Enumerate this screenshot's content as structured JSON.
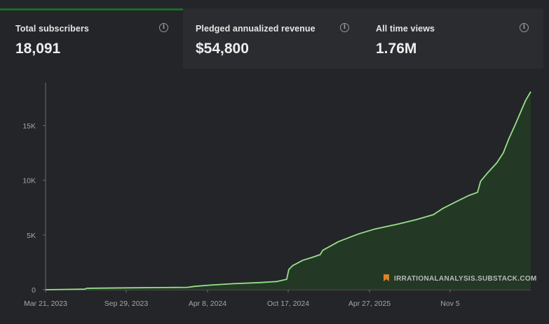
{
  "metrics": [
    {
      "label": "Total subscribers",
      "value": "18,091"
    },
    {
      "label": "Pledged annualized revenue",
      "value": "$54,800"
    },
    {
      "label": "All time views",
      "value": "1.76M"
    }
  ],
  "info_icon": "info-circle-icon",
  "watermark": {
    "icon": "bookmark-icon",
    "text": "IRRATIONALANALYSIS.SUBSTACK.COM"
  },
  "colors": {
    "background": "#232528",
    "line": "#98e08a",
    "area": "#243a25",
    "accent": "#1c6b28",
    "watermark_icon": "#d9822b"
  },
  "chart_data": {
    "type": "area",
    "title": "",
    "xlabel": "",
    "ylabel": "",
    "x_ticks": [
      "Mar 21, 2023",
      "Sep 29, 2023",
      "Apr 8, 2024",
      "Oct 17, 2024",
      "Apr 27, 2025",
      "Nov 5"
    ],
    "y_ticks": [
      "0",
      "5K",
      "10K",
      "15K"
    ],
    "ylim": [
      0,
      18091
    ],
    "grid": false,
    "series": [
      {
        "points": [
          {
            "x": "2023-03-21",
            "y": 0
          },
          {
            "x": "2023-06-21",
            "y": 50
          },
          {
            "x": "2023-06-24",
            "y": 130
          },
          {
            "x": "2023-09-29",
            "y": 170
          },
          {
            "x": "2023-12-20",
            "y": 200
          },
          {
            "x": "2024-02-15",
            "y": 220
          },
          {
            "x": "2024-03-01",
            "y": 300
          },
          {
            "x": "2024-04-08",
            "y": 420
          },
          {
            "x": "2024-06-01",
            "y": 550
          },
          {
            "x": "2024-08-01",
            "y": 650
          },
          {
            "x": "2024-09-10",
            "y": 750
          },
          {
            "x": "2024-10-03",
            "y": 950
          },
          {
            "x": "2024-10-08",
            "y": 1850
          },
          {
            "x": "2024-10-17",
            "y": 2200
          },
          {
            "x": "2024-11-10",
            "y": 2700
          },
          {
            "x": "2024-12-01",
            "y": 2950
          },
          {
            "x": "2024-12-20",
            "y": 3200
          },
          {
            "x": "2024-12-26",
            "y": 3600
          },
          {
            "x": "2025-02-01",
            "y": 4400
          },
          {
            "x": "2025-03-20",
            "y": 5100
          },
          {
            "x": "2025-04-27",
            "y": 5550
          },
          {
            "x": "2025-06-20",
            "y": 6000
          },
          {
            "x": "2025-08-01",
            "y": 6400
          },
          {
            "x": "2025-09-10",
            "y": 6850
          },
          {
            "x": "2025-10-01",
            "y": 7400
          },
          {
            "x": "2025-11-05",
            "y": 8100
          },
          {
            "x": "2025-12-01",
            "y": 8600
          },
          {
            "x": "2025-12-22",
            "y": 8900
          },
          {
            "x": "2025-12-29",
            "y": 9900
          },
          {
            "x": "2026-01-15",
            "y": 10700
          },
          {
            "x": "2026-02-05",
            "y": 11600
          },
          {
            "x": "2026-02-20",
            "y": 12500
          },
          {
            "x": "2026-03-05",
            "y": 13800
          },
          {
            "x": "2026-03-20",
            "y": 15100
          },
          {
            "x": "2026-04-01",
            "y": 16200
          },
          {
            "x": "2026-04-13",
            "y": 17300
          },
          {
            "x": "2026-04-25",
            "y": 18091
          }
        ]
      }
    ]
  }
}
